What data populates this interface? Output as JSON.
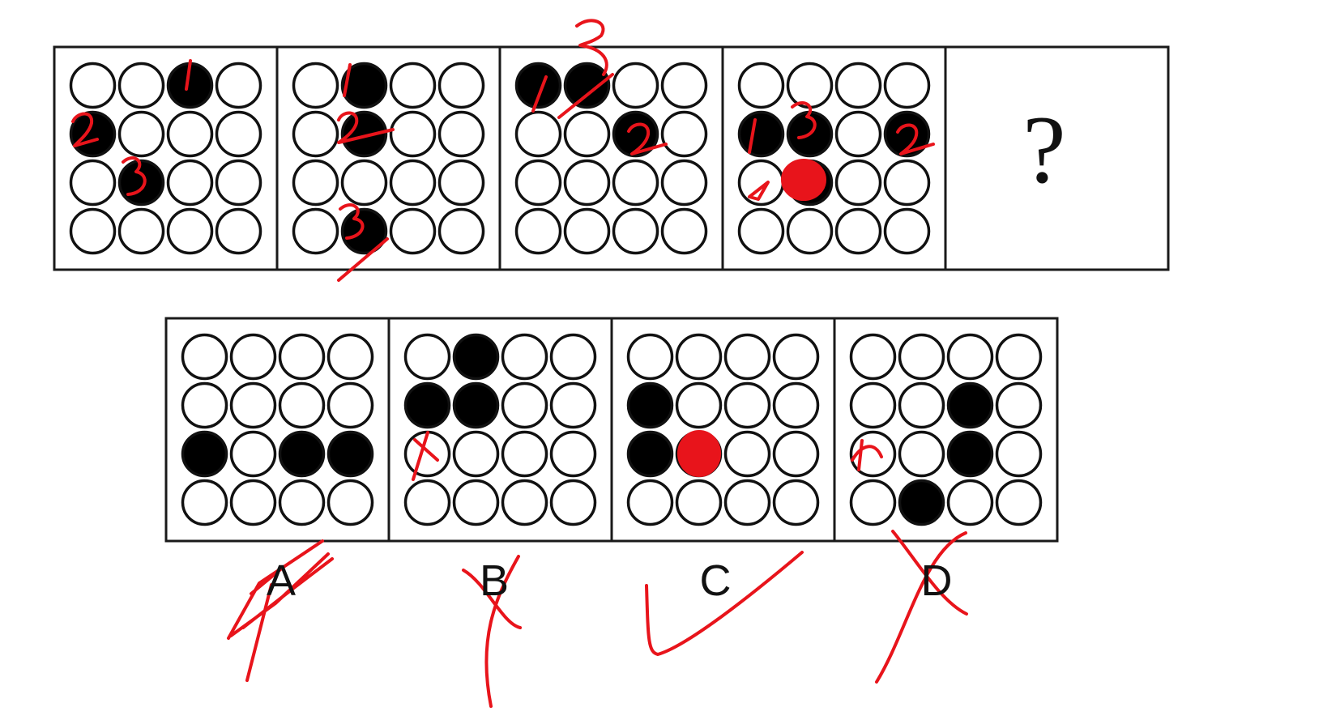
{
  "puzzle": {
    "question_mark": "?",
    "sequence": [
      {
        "filled": [
          [
            0,
            2
          ],
          [
            1,
            0
          ],
          [
            2,
            1
          ]
        ]
      },
      {
        "filled": [
          [
            0,
            1
          ],
          [
            1,
            1
          ],
          [
            3,
            1
          ]
        ]
      },
      {
        "filled": [
          [
            0,
            0
          ],
          [
            0,
            1
          ],
          [
            1,
            2
          ]
        ]
      },
      {
        "filled": [
          [
            1,
            0
          ],
          [
            1,
            1
          ],
          [
            1,
            3
          ],
          [
            2,
            1
          ]
        ]
      }
    ],
    "options": [
      {
        "label": "A",
        "filled": [
          [
            2,
            0
          ],
          [
            2,
            2
          ],
          [
            2,
            3
          ]
        ]
      },
      {
        "label": "B",
        "filled": [
          [
            0,
            1
          ],
          [
            1,
            0
          ],
          [
            1,
            1
          ]
        ]
      },
      {
        "label": "C",
        "filled": [
          [
            1,
            0
          ],
          [
            2,
            0
          ],
          [
            2,
            1
          ]
        ]
      },
      {
        "label": "D",
        "filled": [
          [
            1,
            2
          ],
          [
            2,
            2
          ],
          [
            3,
            1
          ]
        ]
      }
    ]
  },
  "annotations": {
    "stroke_color": "#e8141b",
    "fill_color": "#e8141b",
    "numbers": {
      "panel1": [
        "1",
        "2",
        "3"
      ],
      "panel2": [
        "1",
        "2",
        "3"
      ],
      "panel3": [
        "1",
        "2"
      ],
      "panel4": [
        "1",
        "3",
        "2"
      ]
    },
    "verdicts": {
      "A": "crossed",
      "B": "crossed",
      "C": "check",
      "D": "crossed"
    }
  }
}
